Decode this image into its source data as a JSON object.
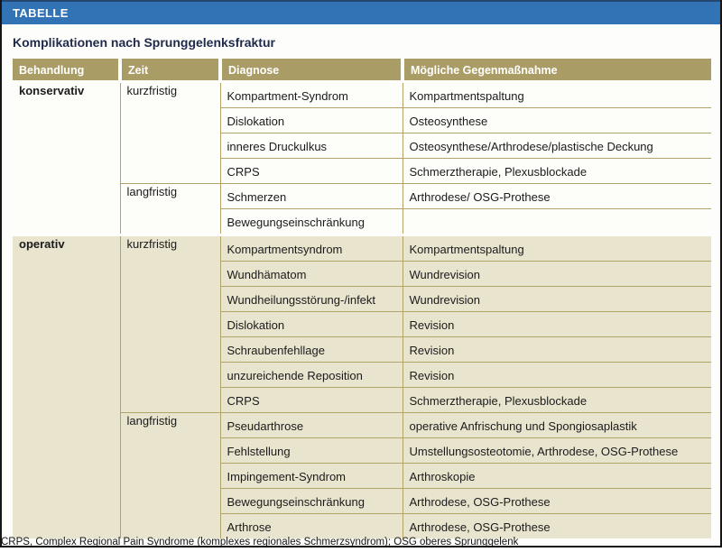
{
  "header_bar": {
    "label": "TABELLE"
  },
  "title": "Komplikationen nach Sprunggelenksfraktur",
  "colors": {
    "bar_blue": "#3273b5",
    "header_gold": "#aa9c65",
    "grid_gold": "#b2a468",
    "row_white": "#fdfdfa",
    "row_beige": "#e9e4ce",
    "frame_black": "#161616"
  },
  "table": {
    "columns": [
      "Behandlung",
      "Zeit",
      "Diagnose",
      "Mögliche Gegenmaßnahme"
    ],
    "sections": [
      {
        "behandlung": "konservativ",
        "bg": "#fdfdfa",
        "groups": [
          {
            "zeit": "kurzfristig",
            "rows": [
              {
                "diagnose": "Kompartment-Syndrom",
                "gegenmassnahme": "Kompartmentspaltung"
              },
              {
                "diagnose": "Dislokation",
                "gegenmassnahme": "Osteosynthese"
              },
              {
                "diagnose": "inneres Druckulkus",
                "gegenmassnahme": "Osteosynthese/Arthrodese/plastische Deckung"
              },
              {
                "diagnose": "CRPS",
                "gegenmassnahme": "Schmerztherapie, Plexusblockade"
              }
            ]
          },
          {
            "zeit": "langfristig",
            "rows": [
              {
                "diagnose": "Schmerzen",
                "gegenmassnahme": "Arthrodese/ OSG-Prothese"
              },
              {
                "diagnose": "Bewegungseinschränkung",
                "gegenmassnahme": ""
              }
            ]
          }
        ]
      },
      {
        "behandlung": "operativ",
        "bg": "#e9e4ce",
        "groups": [
          {
            "zeit": "kurzfristig",
            "rows": [
              {
                "diagnose": "Kompartmentsyndrom",
                "gegenmassnahme": "Kompartmentspaltung"
              },
              {
                "diagnose": "Wundhämatom",
                "gegenmassnahme": "Wundrevision"
              },
              {
                "diagnose": "Wundheilungsstörung-/infekt",
                "gegenmassnahme": "Wundrevision"
              },
              {
                "diagnose": "Dislokation",
                "gegenmassnahme": "Revision"
              },
              {
                "diagnose": "Schraubenfehllage",
                "gegenmassnahme": "Revision"
              },
              {
                "diagnose": "unzureichende Reposition",
                "gegenmassnahme": "Revision"
              },
              {
                "diagnose": "CRPS",
                "gegenmassnahme": "Schmerztherapie, Plexusblockade"
              }
            ]
          },
          {
            "zeit": "langfristig",
            "rows": [
              {
                "diagnose": "Pseudarthrose",
                "gegenmassnahme": "operative Anfrischung und Spongiosaplastik"
              },
              {
                "diagnose": "Fehlstellung",
                "gegenmassnahme": "Umstellungsosteotomie, Arthrodese, OSG-Prothese"
              },
              {
                "diagnose": "Impingement-Syndrom",
                "gegenmassnahme": "Arthroskopie"
              },
              {
                "diagnose": "Bewegungseinschränkung",
                "gegenmassnahme": "Arthrodese, OSG-Prothese"
              },
              {
                "diagnose": "Arthrose",
                "gegenmassnahme": "Arthrodese, OSG-Prothese"
              }
            ]
          }
        ]
      }
    ]
  },
  "footnote": "CRPS, Complex Regional Pain Syndrome (komplexes regionales Schmerzsyndrom); OSG oberes Sprunggelenk"
}
